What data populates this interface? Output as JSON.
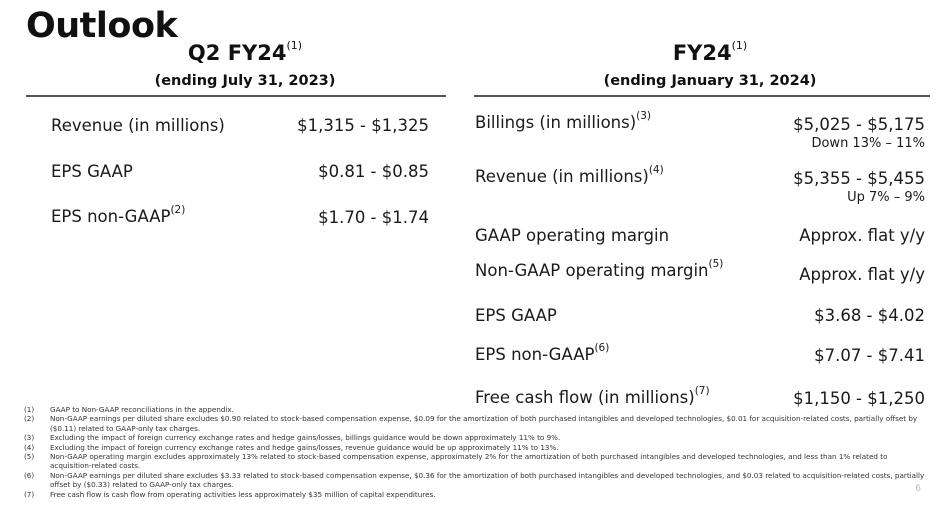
{
  "title": "Outlook",
  "q2": {
    "heading": "Q2 FY24",
    "heading_note": "(1)",
    "subheading": "(ending July 31, 2023)",
    "rows": [
      {
        "label": "Revenue (in millions)",
        "note": "",
        "value": "$1,315 - $1,325"
      },
      {
        "label": "EPS GAAP",
        "note": "",
        "value": "$0.81 - $0.85"
      },
      {
        "label": "EPS non-GAAP",
        "note": "(2)",
        "value": "$1.70 - $1.74"
      }
    ]
  },
  "fy24": {
    "heading": "FY24",
    "heading_note": "(1)",
    "subheading": "(ending January 31, 2024)",
    "rows": [
      {
        "label": "Billings (in millions)",
        "note": "(3)",
        "value": "$5,025 - $5,175",
        "sub": "Down 13% – 11%"
      },
      {
        "label": "Revenue (in millions)",
        "note": "(4)",
        "value": "$5,355 - $5,455",
        "sub": "Up 7% – 9%"
      },
      {
        "label": "GAAP operating margin",
        "note": "",
        "value": "Approx. flat y/y"
      },
      {
        "label": "Non-GAAP operating margin",
        "note": "(5)",
        "value": "Approx. flat y/y"
      },
      {
        "label": "EPS GAAP",
        "note": "",
        "value": "$3.68 - $4.02"
      },
      {
        "label": "EPS non-GAAP",
        "note": "(6)",
        "value": "$7.07 - $7.41"
      },
      {
        "label": "Free cash flow (in millions)",
        "note": "(7)",
        "value": "$1,150 - $1,250"
      }
    ]
  },
  "footnotes": [
    {
      "num": "(1)",
      "text": "GAAP to Non-GAAP reconciliations in the appendix."
    },
    {
      "num": "(2)",
      "text": "Non-GAAP earnings per diluted share excludes $0.90 related to stock-based compensation expense, $0.09 for the amortization of both purchased intangibles and developed technologies, $0.01 for acquisition-related costs, partially offset by ($0.11) related to GAAP-only tax charges."
    },
    {
      "num": "(3)",
      "text": "Excluding the impact of foreign currency exchange rates and hedge gains/losses, billings guidance would be down approximately 11% to 9%."
    },
    {
      "num": "(4)",
      "text": "Excluding the impact of foreign currency exchange rates and hedge gains/losses, revenue guidance would be up approximately 11% to 13%."
    },
    {
      "num": "(5)",
      "text": "Non-GAAP operating margin excludes approximately 13% related to stock-based compensation expense, approximately 2% for the amortization of both purchased intangibles and developed technologies, and less than 1% related to acquisition-related costs."
    },
    {
      "num": "(6)",
      "text": "Non-GAAP earnings per diluted share excludes $3.33 related to stock-based compensation expense, $0.36 for the amortization of both purchased intangibles and developed technologies, and $0.03 related to acquisition-related costs, partially offset by ($0.33) related to GAAP-only tax charges."
    },
    {
      "num": "(7)",
      "text": "Free cash flow is cash flow from operating activities less approximately $35 million of capital expenditures."
    }
  ],
  "page_number": "6"
}
